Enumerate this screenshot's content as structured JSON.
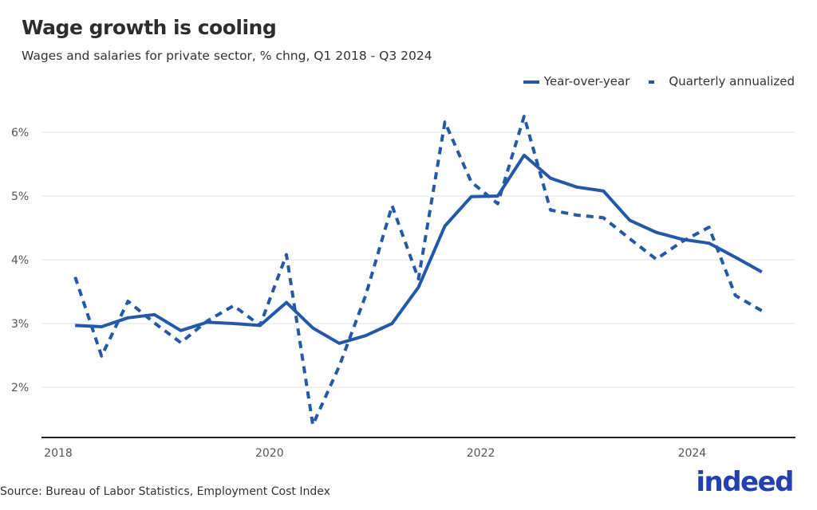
{
  "title": "Wage growth is cooling",
  "subtitle": "Wages and salaries for private sector, % chng, Q1 2018 - Q3 2024",
  "source": "Source: Bureau of Labor Statistics, Employment Cost Index",
  "logo": "indeed",
  "chart_data": {
    "type": "line",
    "title": "Wage growth is cooling",
    "xlabel": "",
    "ylabel": "",
    "x": [
      "2018 Q1",
      "2018 Q2",
      "2018 Q3",
      "2018 Q4",
      "2019 Q1",
      "2019 Q2",
      "2019 Q3",
      "2019 Q4",
      "2020 Q1",
      "2020 Q2",
      "2020 Q3",
      "2020 Q4",
      "2021 Q1",
      "2021 Q2",
      "2021 Q3",
      "2021 Q4",
      "2022 Q1",
      "2022 Q2",
      "2022 Q3",
      "2022 Q4",
      "2023 Q1",
      "2023 Q2",
      "2023 Q3",
      "2023 Q4",
      "2024 Q1",
      "2024 Q2",
      "2024 Q3"
    ],
    "series": [
      {
        "name": "Year-over-year",
        "style": "solid",
        "color": "#2458a8",
        "values": [
          2.97,
          2.95,
          3.09,
          3.14,
          2.89,
          3.02,
          3.0,
          2.97,
          3.33,
          2.93,
          2.69,
          2.81,
          3.0,
          3.57,
          4.53,
          4.99,
          5.0,
          5.64,
          5.28,
          5.14,
          5.08,
          4.62,
          4.43,
          4.32,
          4.26,
          4.04,
          3.81
        ]
      },
      {
        "name": "Quarterly annualized",
        "style": "dashed",
        "color": "#2458a8",
        "values": [
          3.73,
          2.49,
          3.35,
          3.01,
          2.7,
          3.04,
          3.28,
          2.97,
          4.08,
          1.41,
          2.33,
          3.44,
          4.85,
          3.7,
          6.16,
          5.22,
          4.88,
          6.25,
          4.78,
          4.7,
          4.66,
          4.33,
          4.01,
          4.29,
          4.51,
          3.44,
          3.2
        ]
      }
    ],
    "x_ticks": [
      "2018",
      "2020",
      "2022",
      "2024"
    ],
    "y_ticks": [
      "2%",
      "3%",
      "4%",
      "5%",
      "6%"
    ],
    "y_tick_values": [
      2,
      3,
      4,
      5,
      6
    ],
    "ylim": [
      1.2,
      6.8
    ],
    "grid": "horizontal",
    "legend": "top-right"
  }
}
